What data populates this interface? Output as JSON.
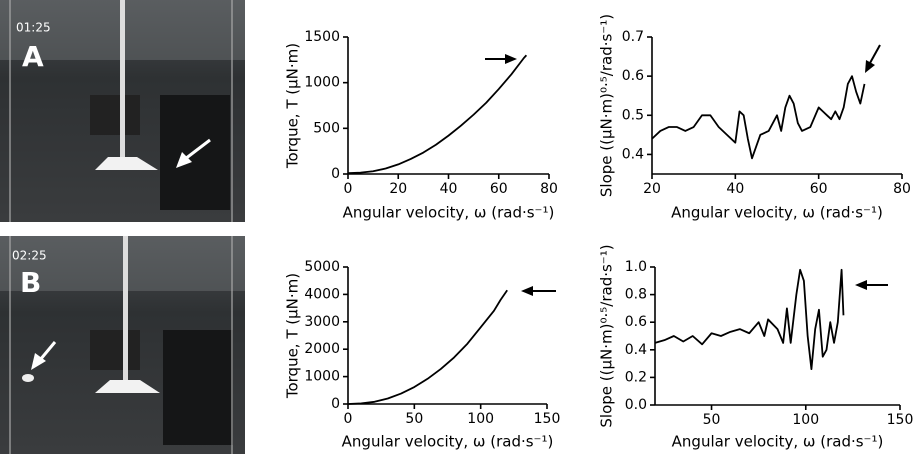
{
  "panels": [
    {
      "label": "A",
      "timestamp": "01:25"
    },
    {
      "label": "B",
      "timestamp": "02:25"
    }
  ],
  "chart_data": [
    {
      "type": "line",
      "xlabel": "Angular velocity, ω (rad·s⁻¹)",
      "ylabel": "Torque, T (μN·m)",
      "color": "#000000",
      "x": [
        0,
        5,
        10,
        15,
        20,
        25,
        30,
        35,
        40,
        45,
        50,
        55,
        60,
        65,
        70,
        71
      ],
      "values": [
        10,
        15,
        30,
        60,
        105,
        165,
        235,
        320,
        420,
        530,
        650,
        780,
        930,
        1090,
        1270,
        1300
      ],
      "xlim": [
        0,
        80
      ],
      "xticks": [
        0,
        20,
        40,
        60,
        80
      ],
      "ylim": [
        0,
        1500
      ],
      "yticks": [
        0,
        500,
        1000,
        1500
      ]
    },
    {
      "type": "line",
      "xlabel": "Angular velocity, ω (rad·s⁻¹)",
      "ylabel": "Slope ((μN·m)⁰·⁵/rad·s⁻¹)",
      "color": "#000000",
      "x": [
        20,
        22,
        24,
        26,
        28,
        30,
        32,
        34,
        36,
        38,
        40,
        41,
        42,
        43,
        44,
        45,
        46,
        48,
        50,
        51,
        52,
        53,
        54,
        55,
        56,
        58,
        60,
        61,
        62,
        63,
        64,
        65,
        66,
        67,
        68,
        69,
        70,
        71
      ],
      "values": [
        0.44,
        0.46,
        0.47,
        0.47,
        0.46,
        0.47,
        0.5,
        0.5,
        0.47,
        0.45,
        0.43,
        0.51,
        0.5,
        0.44,
        0.39,
        0.42,
        0.45,
        0.46,
        0.5,
        0.46,
        0.52,
        0.55,
        0.53,
        0.48,
        0.46,
        0.47,
        0.52,
        0.51,
        0.5,
        0.49,
        0.51,
        0.49,
        0.52,
        0.58,
        0.6,
        0.56,
        0.53,
        0.58
      ],
      "xlim": [
        20,
        80
      ],
      "xticks": [
        20,
        40,
        60,
        80
      ],
      "ylim": [
        0.35,
        0.7
      ],
      "yticks": [
        0.4,
        0.5,
        0.6,
        0.7
      ]
    },
    {
      "type": "line",
      "xlabel": "Angular velocity, ω (rad·s⁻¹)",
      "ylabel": "Torque, T (μN·m)",
      "color": "#000000",
      "x": [
        0,
        10,
        20,
        30,
        40,
        50,
        60,
        70,
        80,
        90,
        100,
        110,
        115,
        120
      ],
      "values": [
        0,
        20,
        80,
        200,
        380,
        620,
        920,
        1280,
        1700,
        2200,
        2800,
        3400,
        3800,
        4150
      ],
      "xlim": [
        0,
        150
      ],
      "xticks": [
        0,
        50,
        100,
        150
      ],
      "ylim": [
        0,
        5000
      ],
      "yticks": [
        0,
        1000,
        2000,
        3000,
        4000,
        5000
      ]
    },
    {
      "type": "line",
      "xlabel": "Angular velocity, ω (rad·s⁻¹)",
      "ylabel": "Slope ((μN·m)⁰·⁵/rad·s⁻¹)",
      "color": "#000000",
      "x": [
        20,
        25,
        30,
        35,
        40,
        45,
        50,
        55,
        60,
        65,
        70,
        75,
        78,
        80,
        85,
        88,
        90,
        92,
        95,
        97,
        99,
        101,
        103,
        105,
        107,
        109,
        111,
        113,
        115,
        117,
        119,
        120
      ],
      "values": [
        0.45,
        0.47,
        0.5,
        0.46,
        0.5,
        0.44,
        0.52,
        0.5,
        0.53,
        0.55,
        0.52,
        0.6,
        0.5,
        0.62,
        0.55,
        0.45,
        0.7,
        0.45,
        0.8,
        0.98,
        0.9,
        0.5,
        0.26,
        0.55,
        0.69,
        0.35,
        0.4,
        0.6,
        0.45,
        0.6,
        0.98,
        0.65
      ],
      "xlim": [
        20,
        150
      ],
      "xticks": [
        50,
        100,
        150
      ],
      "ylim": [
        0,
        1.0
      ],
      "yticks": [
        {
          "value": 0,
          "label": "0.0"
        },
        0.2,
        0.4,
        0.6,
        0.8,
        {
          "value": 1,
          "label": "1.0"
        }
      ]
    }
  ]
}
